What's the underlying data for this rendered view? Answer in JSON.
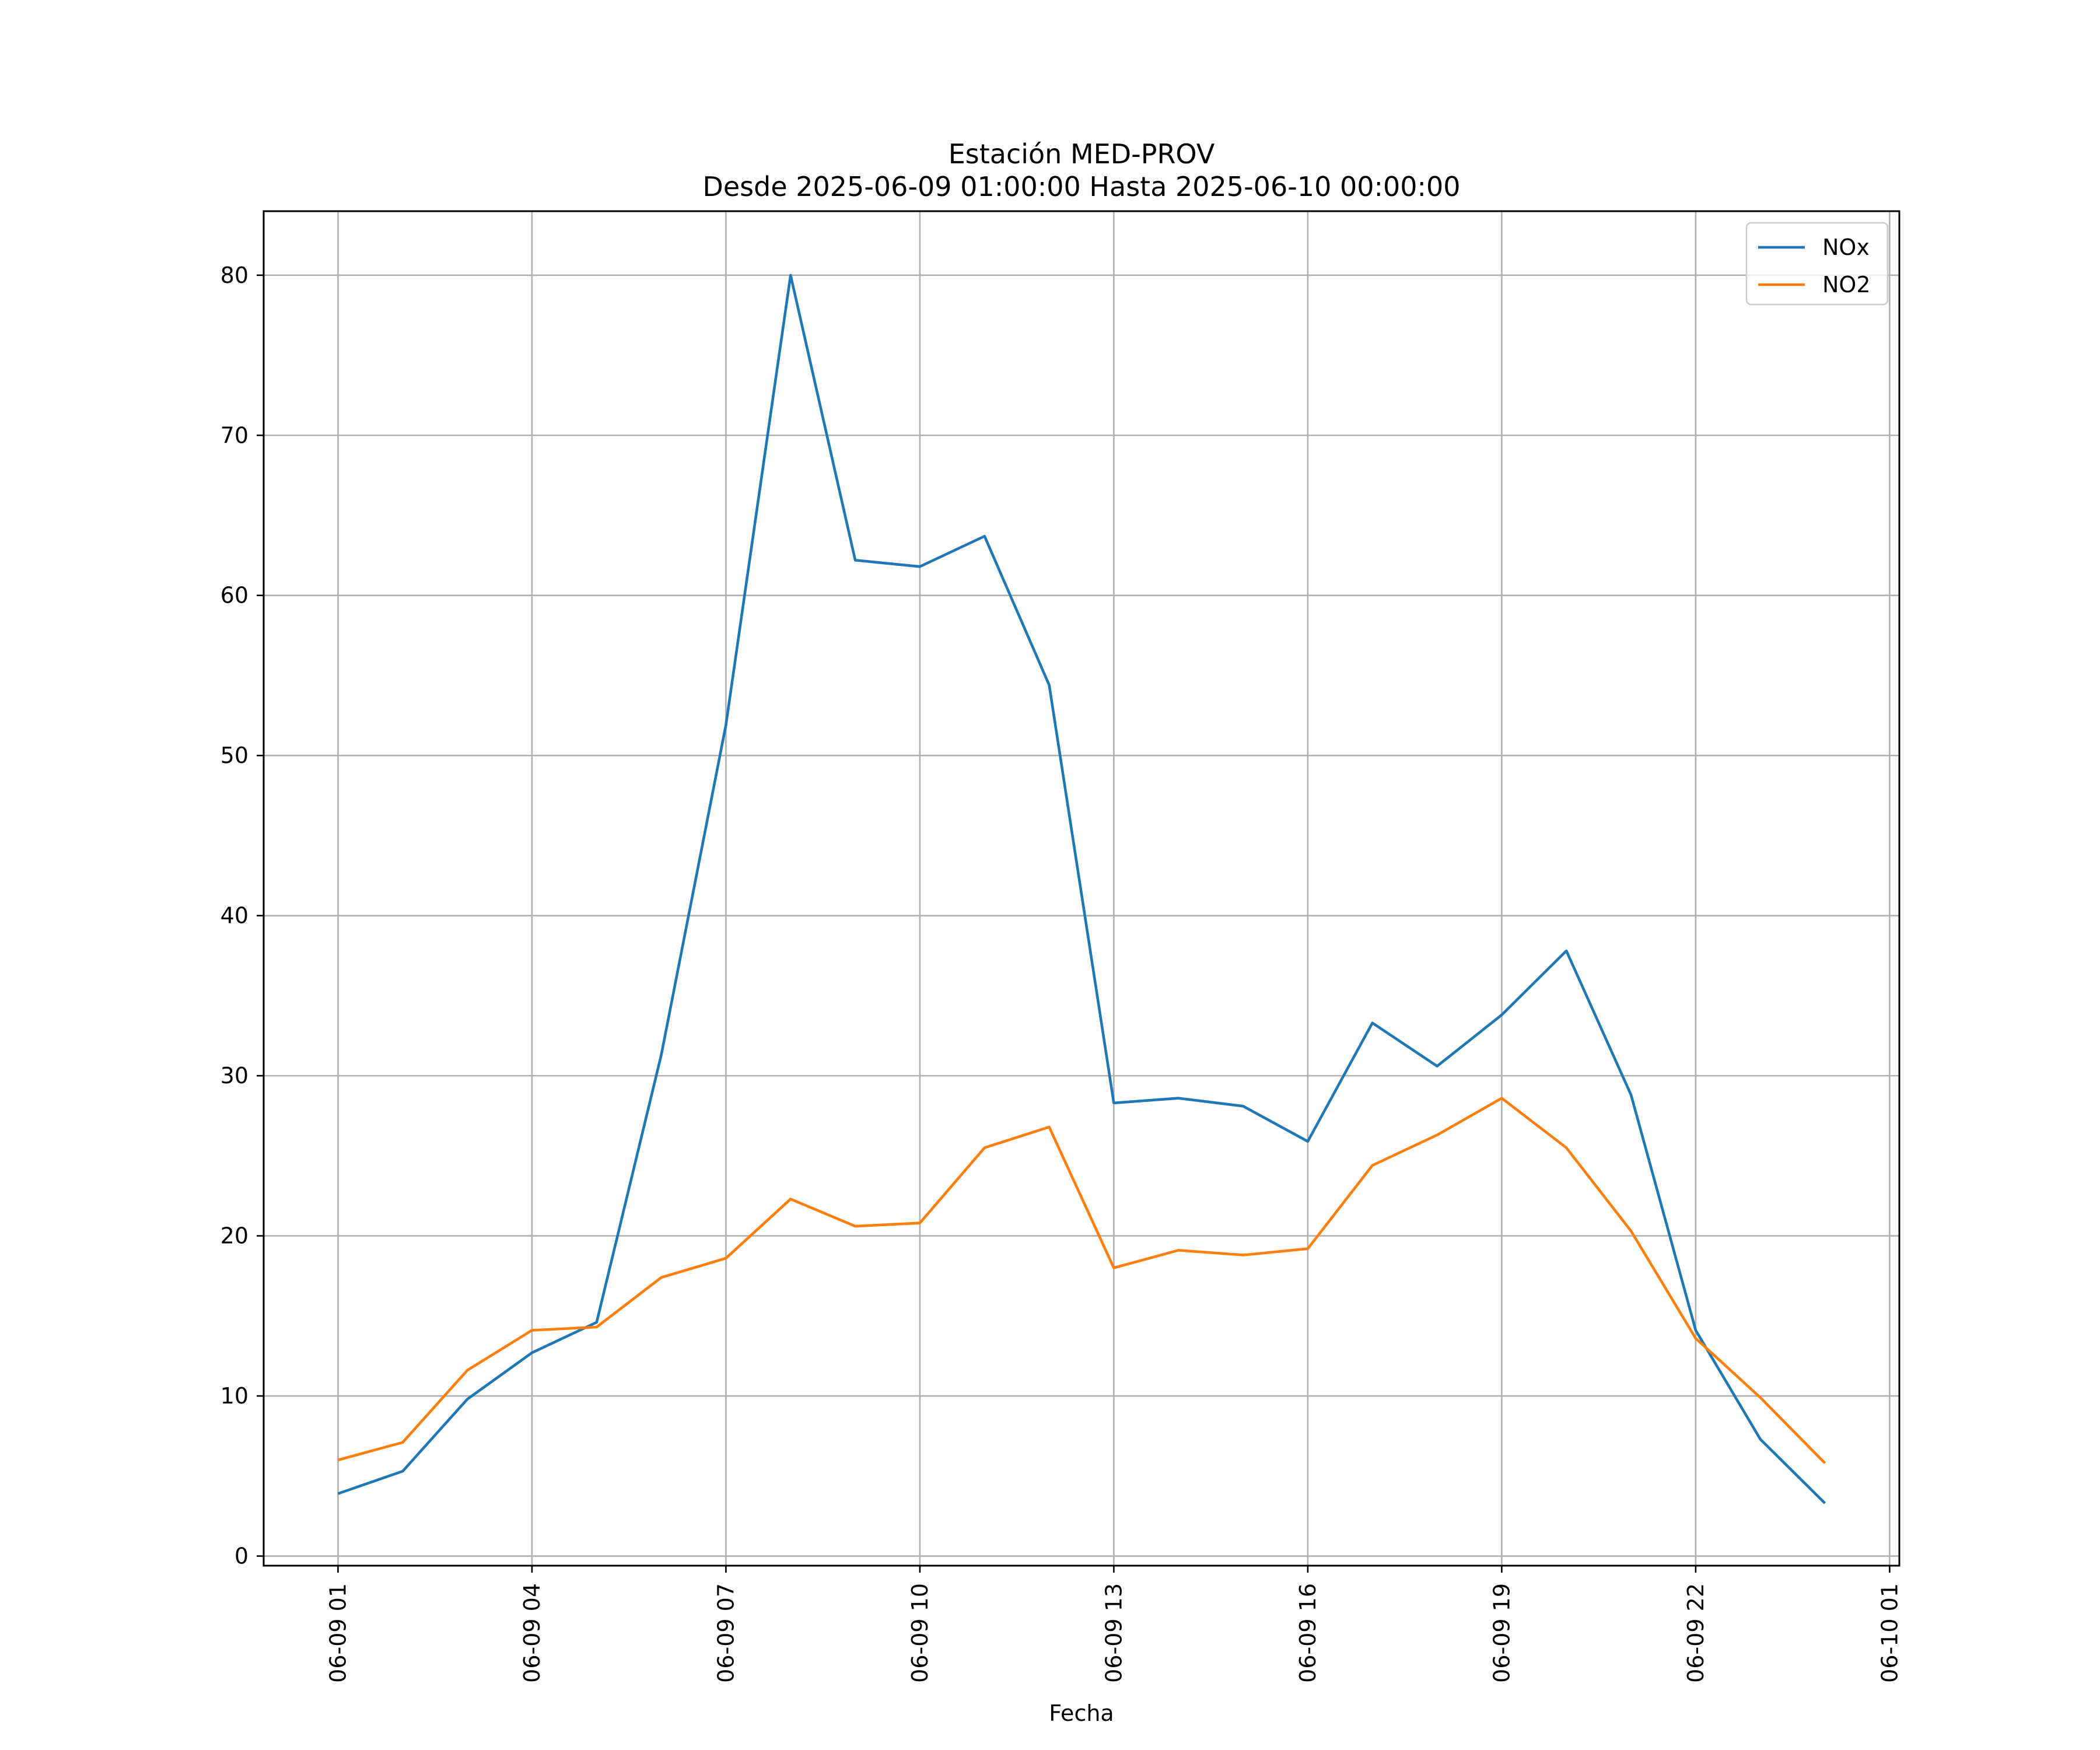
{
  "chart_data": {
    "type": "line",
    "title": "Estación MED-PROV",
    "subtitle": "Desde 2025-06-09 01:00:00 Hasta 2025-06-10 00:00:00",
    "xlabel": "Fecha",
    "ylabel": "",
    "x": [
      "2025-06-09 01:00",
      "2025-06-09 02:00",
      "2025-06-09 03:00",
      "2025-06-09 04:00",
      "2025-06-09 05:00",
      "2025-06-09 06:00",
      "2025-06-09 07:00",
      "2025-06-09 08:00",
      "2025-06-09 09:00",
      "2025-06-09 10:00",
      "2025-06-09 11:00",
      "2025-06-09 12:00",
      "2025-06-09 13:00",
      "2025-06-09 14:00",
      "2025-06-09 15:00",
      "2025-06-09 16:00",
      "2025-06-09 17:00",
      "2025-06-09 18:00",
      "2025-06-09 19:00",
      "2025-06-09 20:00",
      "2025-06-09 21:00",
      "2025-06-09 22:00",
      "2025-06-09 23:00",
      "2025-06-10 00:00"
    ],
    "series": [
      {
        "name": "NOx",
        "color": "#1f77b4",
        "values": [
          3.9,
          5.3,
          9.8,
          12.7,
          14.6,
          31.3,
          51.9,
          80.0,
          62.2,
          61.8,
          63.7,
          54.4,
          28.3,
          28.6,
          28.1,
          25.9,
          33.3,
          30.6,
          33.8,
          37.8,
          28.8,
          14.1,
          7.3,
          3.3
        ]
      },
      {
        "name": "NO2",
        "color": "#ff7f0e",
        "values": [
          6.0,
          7.1,
          11.6,
          14.1,
          14.3,
          17.4,
          18.6,
          22.3,
          20.6,
          20.8,
          25.5,
          26.8,
          18.0,
          19.1,
          18.8,
          19.2,
          24.4,
          26.3,
          28.6,
          25.5,
          20.3,
          13.6,
          9.9,
          5.8
        ]
      }
    ],
    "x_ticks": [
      "06-09 01",
      "06-09 04",
      "06-09 07",
      "06-09 10",
      "06-09 13",
      "06-09 16",
      "06-09 19",
      "06-09 22",
      "06-10 01"
    ],
    "x_tick_dates": [
      "2025-06-09 01:00",
      "2025-06-09 04:00",
      "2025-06-09 07:00",
      "2025-06-09 10:00",
      "2025-06-09 13:00",
      "2025-06-09 16:00",
      "2025-06-09 19:00",
      "2025-06-09 22:00",
      "2025-06-10 01:00"
    ],
    "xlim": [
      "2025-06-08 23:51",
      "2025-06-10 01:09"
    ],
    "y_ticks": [
      0,
      10,
      20,
      30,
      40,
      50,
      60,
      70,
      80
    ],
    "ylim": [
      -0.6,
      84
    ],
    "grid": true,
    "legend": "top-right"
  }
}
